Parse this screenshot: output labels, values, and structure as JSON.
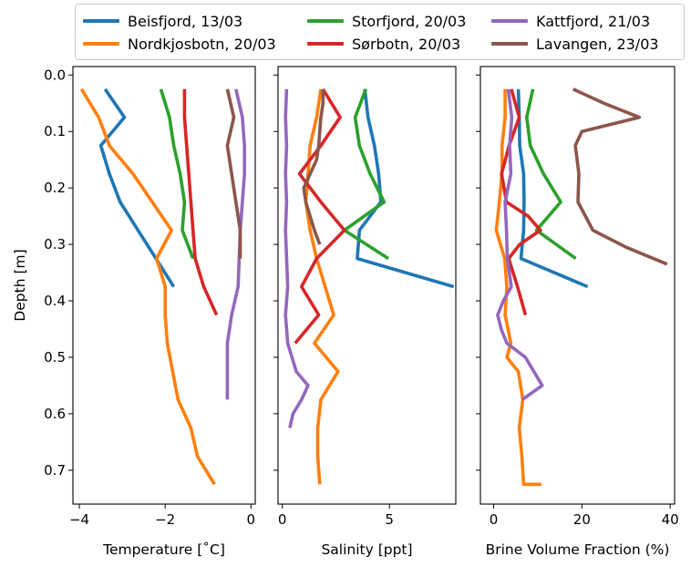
{
  "chart_data": {
    "type": "line",
    "legend": {
      "placement": "top",
      "entries": [
        {
          "label": "Beisfjord, 13/03",
          "color": "#1f77b4"
        },
        {
          "label": "Nordkjosbotn, 20/03",
          "color": "#ff7f0e"
        },
        {
          "label": "Storfjord, 20/03",
          "color": "#2ca02c"
        },
        {
          "label": "Sørbotn, 20/03",
          "color": "#d62728"
        },
        {
          "label": "Kattfjord, 21/03",
          "color": "#9467bd"
        },
        {
          "label": "Lavangen, 23/03",
          "color": "#8c564b"
        }
      ]
    },
    "ylabel": "Depth [m]",
    "ylim": [
      0.76,
      -0.015
    ],
    "yticks": [
      "0.0",
      "0.1",
      "0.2",
      "0.3",
      "0.4",
      "0.5",
      "0.6",
      "0.7"
    ],
    "ytick_values": [
      0.0,
      0.1,
      0.2,
      0.3,
      0.4,
      0.5,
      0.6,
      0.7
    ],
    "panels": [
      {
        "xlabel": "Temperature [$^{\\circ}$C]",
        "xlabel_display": "Temperature [˚C]",
        "xlim": [
          -4.15,
          0.1
        ],
        "xticks": [
          "−4",
          "−2",
          "0"
        ],
        "xtick_values": [
          -4,
          -2,
          0
        ],
        "series": [
          {
            "name": "Beisfjord, 13/03",
            "x": [
              -3.4,
              -2.95,
              -3.5,
              -3.3,
              -3.05,
              -1.8
            ],
            "y": [
              0.025,
              0.075,
              0.125,
              0.175,
              0.225,
              0.375
            ]
          },
          {
            "name": "Nordkjosbotn, 20/03",
            "x": [
              -3.95,
              -3.55,
              -3.3,
              -2.75,
              -1.85,
              -2.2,
              -2.0,
              -2.0,
              -1.95,
              -1.7,
              -1.4,
              -1.25,
              -0.85
            ],
            "y": [
              0.025,
              0.075,
              0.125,
              0.175,
              0.275,
              0.325,
              0.375,
              0.425,
              0.475,
              0.575,
              0.625,
              0.675,
              0.725
            ]
          },
          {
            "name": "Storfjord, 20/03",
            "x": [
              -2.1,
              -1.9,
              -1.8,
              -1.65,
              -1.55,
              -1.6,
              -1.35
            ],
            "y": [
              0.025,
              0.075,
              0.125,
              0.175,
              0.225,
              0.275,
              0.325
            ]
          },
          {
            "name": "Sørbotn, 20/03",
            "x": [
              -1.55,
              -1.55,
              -1.45,
              -1.4,
              -1.3,
              -1.1,
              -0.8
            ],
            "y": [
              0.025,
              0.075,
              0.175,
              0.225,
              0.325,
              0.375,
              0.425
            ]
          },
          {
            "name": "Kattfjord, 21/03",
            "x": [
              -0.35,
              -0.2,
              -0.15,
              -0.15,
              -0.25,
              -0.3,
              -0.45,
              -0.55,
              -0.55,
              -0.55
            ],
            "y": [
              0.025,
              0.075,
              0.125,
              0.175,
              0.275,
              0.375,
              0.425,
              0.475,
              0.525,
              0.575
            ]
          },
          {
            "name": "Lavangen, 23/03",
            "x": [
              -0.55,
              -0.4,
              -0.55,
              -0.45,
              -0.35,
              -0.25,
              -0.25
            ],
            "y": [
              0.025,
              0.075,
              0.125,
              0.175,
              0.225,
              0.275,
              0.325
            ]
          }
        ]
      },
      {
        "xlabel": "Salinity [ppt]",
        "xlim": [
          -0.2,
          8.1
        ],
        "xticks": [
          "0",
          "5"
        ],
        "xtick_values": [
          0,
          5
        ],
        "series": [
          {
            "name": "Beisfjord, 13/03",
            "x": [
              3.85,
              4.0,
              4.3,
              4.5,
              4.6,
              3.6,
              3.5,
              8.0
            ],
            "y": [
              0.025,
              0.075,
              0.125,
              0.175,
              0.225,
              0.275,
              0.325,
              0.375
            ]
          },
          {
            "name": "Nordkjosbotn, 20/03",
            "x": [
              1.8,
              1.6,
              1.3,
              1.2,
              1.1,
              1.3,
              1.6,
              2.4,
              1.5,
              2.6,
              1.8,
              1.65,
              1.65,
              1.75
            ],
            "y": [
              0.025,
              0.075,
              0.125,
              0.175,
              0.225,
              0.275,
              0.325,
              0.425,
              0.475,
              0.525,
              0.575,
              0.625,
              0.675,
              0.725
            ]
          },
          {
            "name": "Storfjord, 20/03",
            "x": [
              3.9,
              3.4,
              3.6,
              4.1,
              4.75,
              2.9,
              4.95
            ],
            "y": [
              0.025,
              0.075,
              0.125,
              0.175,
              0.225,
              0.275,
              0.325
            ]
          },
          {
            "name": "Sørbotn, 20/03",
            "x": [
              1.9,
              2.7,
              1.8,
              0.8,
              1.8,
              2.9,
              1.6,
              0.9,
              1.7,
              0.6
            ],
            "y": [
              0.025,
              0.075,
              0.125,
              0.175,
              0.225,
              0.275,
              0.325,
              0.375,
              0.425,
              0.475
            ]
          },
          {
            "name": "Kattfjord, 21/03",
            "x": [
              0.2,
              0.15,
              0.2,
              0.15,
              0.2,
              0.15,
              0.2,
              0.25,
              0.15,
              0.25,
              0.65,
              1.2,
              0.9,
              0.5,
              0.35
            ],
            "y": [
              0.025,
              0.075,
              0.125,
              0.175,
              0.225,
              0.275,
              0.325,
              0.375,
              0.425,
              0.475,
              0.525,
              0.55,
              0.575,
              0.6,
              0.625
            ]
          },
          {
            "name": "Lavangen, 23/03",
            "x": [
              1.9,
              1.9,
              1.8,
              1.75,
              1.7,
              1.6,
              1.3,
              1.0,
              1.1,
              1.3,
              1.5,
              1.75
            ],
            "y": [
              0.025,
              0.05,
              0.075,
              0.1,
              0.125,
              0.15,
              0.175,
              0.2,
              0.225,
              0.25,
              0.275,
              0.3
            ]
          }
        ]
      },
      {
        "xlabel": "Brine Volume Fraction (%)",
        "xlim": [
          -3,
          41
        ],
        "xticks": [
          "0",
          "20",
          "40"
        ],
        "xtick_values": [
          0,
          20,
          40
        ],
        "series": [
          {
            "name": "Beisfjord, 13/03",
            "x": [
              5.6,
              5.8,
              5.9,
              6.8,
              6.9,
              6.8,
              6.2,
              21.3
            ],
            "y": [
              0.025,
              0.075,
              0.125,
              0.175,
              0.225,
              0.275,
              0.325,
              0.375
            ]
          },
          {
            "name": "Nordkjosbotn, 20/03",
            "x": [
              2.6,
              2.6,
              1.9,
              1.9,
              1.3,
              0.6,
              2.5,
              3.0,
              2.6,
              3.9,
              3.0,
              5.6,
              6.6,
              5.8,
              6.4,
              6.8,
              10.8
            ],
            "y": [
              0.025,
              0.075,
              0.125,
              0.175,
              0.225,
              0.275,
              0.325,
              0.375,
              0.425,
              0.475,
              0.5,
              0.525,
              0.575,
              0.625,
              0.675,
              0.725,
              0.725
            ]
          },
          {
            "name": "Storfjord, 20/03",
            "x": [
              8.9,
              7.5,
              8.3,
              11.3,
              15.2,
              9.7,
              18.6
            ],
            "y": [
              0.025,
              0.075,
              0.125,
              0.175,
              0.225,
              0.275,
              0.325
            ]
          },
          {
            "name": "Sørbotn, 20/03",
            "x": [
              4.0,
              5.8,
              3.5,
              1.8,
              2.9,
              7.8,
              10.6,
              5.9,
              3.4,
              5.4,
              7.2
            ],
            "y": [
              0.025,
              0.075,
              0.125,
              0.175,
              0.225,
              0.25,
              0.275,
              0.3,
              0.325,
              0.375,
              0.425
            ]
          },
          {
            "name": "Kattfjord, 21/03",
            "x": [
              3.3,
              4.1,
              3.6,
              3.9,
              2.6,
              2.9,
              3.1,
              4.0,
              2.2,
              0.9,
              1.7,
              3.0,
              7.2,
              11.0,
              6.5
            ],
            "y": [
              0.025,
              0.075,
              0.125,
              0.175,
              0.225,
              0.275,
              0.325,
              0.375,
              0.4,
              0.425,
              0.45,
              0.475,
              0.5,
              0.55,
              0.575
            ]
          },
          {
            "name": "Lavangen, 23/03",
            "x": [
              18.0,
              25.0,
              33.0,
              20.0,
              18.5,
              19.3,
              19.1,
              20.8,
              22.5,
              30.0,
              39.3
            ],
            "y": [
              0.025,
              0.05,
              0.075,
              0.1,
              0.125,
              0.175,
              0.225,
              0.25,
              0.275,
              0.305,
              0.335
            ]
          }
        ]
      }
    ]
  }
}
